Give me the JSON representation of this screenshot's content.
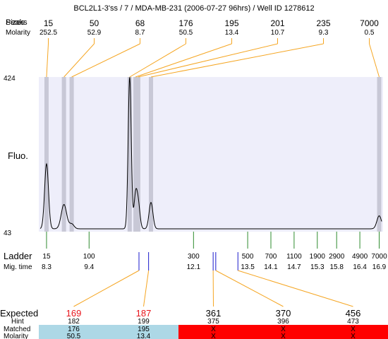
{
  "title": "BCL2L1-3'ss / 7 / MDA-MB-231 (2006-07-27 96hrs) / Well ID 1278612",
  "header": {
    "row1_label": "Peaks",
    "row1_label_overlap": "Sizes",
    "row2_label": "Molarity"
  },
  "axis": {
    "ylabel": "Fluo.",
    "ymax_label": "424",
    "ymin_label": "43"
  },
  "ladder": {
    "label": "Ladder",
    "mig_label": "Mig. time"
  },
  "expected_table": {
    "row_labels": [
      "Expected",
      "Hint",
      "Matched",
      "Molarity"
    ],
    "columns": [
      {
        "expected": "169",
        "hint": "182",
        "matched": "176",
        "molarity": "50.5",
        "status": "matched",
        "expected_color": "#e8141b"
      },
      {
        "expected": "187",
        "hint": "199",
        "matched": "195",
        "molarity": "13.4",
        "status": "matched",
        "expected_color": "#e8141b"
      },
      {
        "expected": "361",
        "hint": "375",
        "matched": "X",
        "molarity": "X",
        "status": "unmatched",
        "expected_color": "#000000"
      },
      {
        "expected": "370",
        "hint": "396",
        "matched": "X",
        "molarity": "X",
        "status": "unmatched",
        "expected_color": "#000000"
      },
      {
        "expected": "456",
        "hint": "473",
        "matched": "X",
        "molarity": "X",
        "status": "unmatched",
        "expected_color": "#000000"
      }
    ]
  },
  "colors": {
    "plot_bg": "#eeeefa",
    "band": "#c8c8d6",
    "leader": "#f5a623",
    "ladder_tick": "#2e8b2e",
    "expected_tick": "#1a1acc",
    "matched_bg": "#add8e6",
    "unmatched_bg": "#ff0000"
  },
  "chart_data": {
    "type": "line",
    "title": "BCL2L1-3'ss / 7 / MDA-MB-231 (2006-07-27 96hrs) / Well ID 1278612",
    "xlabel": "",
    "ylabel": "Fluo.",
    "ylim": [
      43,
      424
    ],
    "peaks": [
      {
        "size": "15",
        "molarity": "252.5",
        "mig_time": 8.3
      },
      {
        "size": "50",
        "molarity": "52.9",
        "mig_time": 8.75
      },
      {
        "size": "68",
        "molarity": "8.7",
        "mig_time": 8.95
      },
      {
        "size": "176",
        "molarity": "50.5",
        "mig_time": 10.45
      },
      {
        "size": "195",
        "molarity": "13.4",
        "mig_time": 10.6
      },
      {
        "size": "201",
        "molarity": "10.7",
        "mig_time": 10.67
      },
      {
        "size": "235",
        "molarity": "9.3",
        "mig_time": 11.0
      },
      {
        "size": "7000",
        "molarity": "0.5",
        "mig_time": 16.9
      }
    ],
    "ladder": [
      {
        "size": "15",
        "mig_time": "8.3"
      },
      {
        "size": "100",
        "mig_time": "9.4"
      },
      {
        "size": "300",
        "mig_time": "12.1"
      },
      {
        "size": "500",
        "mig_time": "13.5"
      },
      {
        "size": "700",
        "mig_time": "14.1"
      },
      {
        "size": "1100",
        "mig_time": "14.7"
      },
      {
        "size": "1900",
        "mig_time": "15.3"
      },
      {
        "size": "2900",
        "mig_time": "15.8"
      },
      {
        "size": "4900",
        "mig_time": "16.4"
      },
      {
        "size": "7000",
        "mig_time": "16.9"
      }
    ],
    "expected_sizes": [
      169,
      187,
      361,
      370,
      456
    ],
    "trace": {
      "baseline": 50,
      "features": [
        {
          "center": 8.3,
          "height": 160,
          "width": 0.05
        },
        {
          "center": 8.75,
          "height": 60,
          "width": 0.07
        },
        {
          "center": 8.95,
          "height": 12,
          "width": 0.06
        },
        {
          "center": 10.45,
          "height": 374,
          "width": 0.04
        },
        {
          "center": 10.6,
          "height": 75,
          "width": 0.04
        },
        {
          "center": 10.67,
          "height": 62,
          "width": 0.045
        },
        {
          "center": 11.0,
          "height": 65,
          "width": 0.05
        },
        {
          "center": 16.9,
          "height": 32,
          "width": 0.06
        }
      ]
    }
  }
}
